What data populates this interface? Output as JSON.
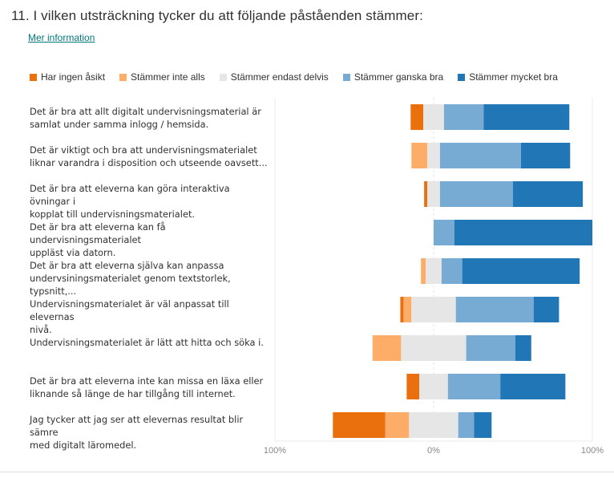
{
  "question": {
    "title": "11.  I vilken utsträckning tycker du att följande påståenden stämmer:",
    "more_info_link": "Mer information"
  },
  "chart_data": {
    "type": "bar",
    "subtype": "diverging-stacked-horizontal",
    "xlim": [
      -100,
      100
    ],
    "x_ticks": [
      "100%",
      "0%",
      "100%"
    ],
    "legend_position": "top",
    "series": [
      {
        "name": "Har ingen åsikt",
        "color": "#ea700d",
        "side": "negative"
      },
      {
        "name": "Stämmer inte alls",
        "color": "#fdad67",
        "side": "negative"
      },
      {
        "name": "Stämmer endast delvis",
        "color": "#e6e6e6",
        "side": "neutral"
      },
      {
        "name": "Stämmer ganska bra",
        "color": "#78abd3",
        "side": "positive"
      },
      {
        "name": "Stämmer mycket bra",
        "color": "#2176b6",
        "side": "positive"
      }
    ],
    "categories": [
      "Det är bra att allt digitalt undervisningsmaterial är\nsamlat under samma inlogg / hemsida.",
      "Det är viktigt och bra att undervisningsmaterialet\nliknar varandra i disposition och utseende oavsett...",
      "Det är bra att eleverna kan göra interaktiva övningar i\nkopplat till undervisningsmaterialet.",
      "Det är bra att eleverna kan få undervisningsmaterialet\nuppläst via datorn.",
      "Det är bra att eleverna själva kan anpassa\nundervsiningsmaterialet genom textstorlek, typsnitt,...",
      "Undervisningsmaterialet är väl anpassat till elevernas\nnivå.",
      "Undervisningsmaterialet är lätt att hitta och söka i.",
      "Det är bra att eleverna inte kan missa en läxa eller\nliknande så länge de har tillgång till internet.",
      "Jag tycker att jag ser att elevernas resultat blir sämre\nmed digitalt läromedel."
    ],
    "values": [
      [
        8,
        0,
        13,
        25,
        54
      ],
      [
        0,
        10,
        8,
        51,
        31
      ],
      [
        2,
        0,
        8,
        46,
        44
      ],
      [
        0,
        0,
        0,
        13,
        87
      ],
      [
        0,
        3,
        10,
        13,
        74
      ],
      [
        2,
        5,
        28,
        49,
        16
      ],
      [
        0,
        18,
        41,
        31,
        10
      ],
      [
        8,
        0,
        18,
        33,
        41
      ],
      [
        33,
        15,
        31,
        10,
        11
      ]
    ],
    "units": "percent"
  }
}
